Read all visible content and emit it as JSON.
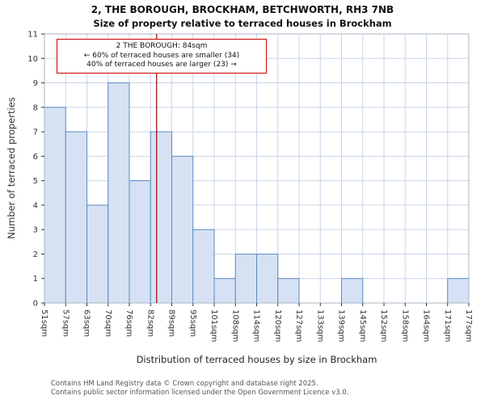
{
  "header": {
    "title": "2, THE BOROUGH, BROCKHAM, BETCHWORTH, RH3 7NB",
    "subtitle": "Size of property relative to terraced houses in Brockham"
  },
  "annotation": {
    "line1": "2 THE BOROUGH: 84sqm",
    "line2": "← 60% of terraced houses are smaller (34)",
    "line3": "40% of terraced houses are larger (23) →"
  },
  "axes": {
    "x_label": "Distribution of terraced houses by size in Brockham",
    "y_label": "Number of terraced properties"
  },
  "footer": {
    "line1": "Contains HM Land Registry data © Crown copyright and database right 2025.",
    "line2": "Contains public sector information licensed under the Open Government Licence v3.0."
  },
  "chart_data": {
    "type": "bar",
    "title": "2, THE BOROUGH, BROCKHAM, BETCHWORTH, RH3 7NB — Size of property relative to terraced houses in Brockham",
    "xlabel": "Distribution of terraced houses by size in Brockham",
    "ylabel": "Number of terraced properties",
    "tick_labels": [
      "51sqm",
      "57sqm",
      "63sqm",
      "70sqm",
      "76sqm",
      "82sqm",
      "89sqm",
      "95sqm",
      "101sqm",
      "108sqm",
      "114sqm",
      "120sqm",
      "127sqm",
      "133sqm",
      "139sqm",
      "145sqm",
      "152sqm",
      "158sqm",
      "164sqm",
      "171sqm",
      "177sqm"
    ],
    "bin_edges_sqm": [
      51,
      57,
      63,
      70,
      76,
      82,
      89,
      95,
      101,
      108,
      114,
      120,
      127,
      133,
      139,
      145,
      152,
      158,
      164,
      171,
      177
    ],
    "values": [
      8,
      7,
      4,
      9,
      5,
      7,
      6,
      3,
      1,
      2,
      2,
      1,
      0,
      0,
      1,
      0,
      0,
      0,
      0,
      1
    ],
    "ylim": [
      0,
      11
    ],
    "y_ticks": [
      0,
      1,
      2,
      3,
      4,
      5,
      6,
      7,
      8,
      9,
      10,
      11
    ],
    "grid": true,
    "marker": {
      "value_sqm": 84,
      "color": "#990000"
    },
    "bar_fill": "#d6e2f3",
    "bar_stroke": "#5b8ac6",
    "grid_color": "#c9d4e8"
  }
}
